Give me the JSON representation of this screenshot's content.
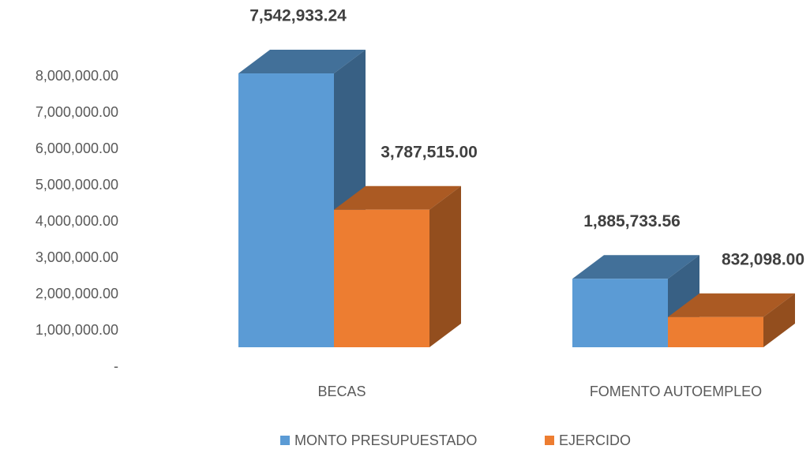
{
  "chart_data": {
    "type": "bar3d",
    "categories": [
      "BECAS",
      "FOMENTO AUTOEMPLEO"
    ],
    "series": [
      {
        "name": "MONTO PRESUPUESTADO",
        "color": "#5b9bd5",
        "values": [
          7542933.24,
          1885733.56
        ],
        "value_labels": [
          "7,542,933.24",
          "1,885,733.56"
        ]
      },
      {
        "name": "EJERCIDO",
        "color": "#ed7d31",
        "values": [
          3787515,
          832098
        ],
        "value_labels": [
          "3,787,515.00",
          "832,098.00"
        ]
      }
    ],
    "ylim": [
      0,
      8000000
    ],
    "yticks": [
      {
        "value": 0,
        "label": "-"
      },
      {
        "value": 1000000,
        "label": "1,000,000.00"
      },
      {
        "value": 2000000,
        "label": "2,000,000.00"
      },
      {
        "value": 3000000,
        "label": "3,000,000.00"
      },
      {
        "value": 4000000,
        "label": "4,000,000.00"
      },
      {
        "value": 5000000,
        "label": "5,000,000.00"
      },
      {
        "value": 6000000,
        "label": "6,000,000.00"
      },
      {
        "value": 7000000,
        "label": "7,000,000.00"
      },
      {
        "value": 8000000,
        "label": "8,000,000.00"
      }
    ],
    "legend": "bottom"
  }
}
